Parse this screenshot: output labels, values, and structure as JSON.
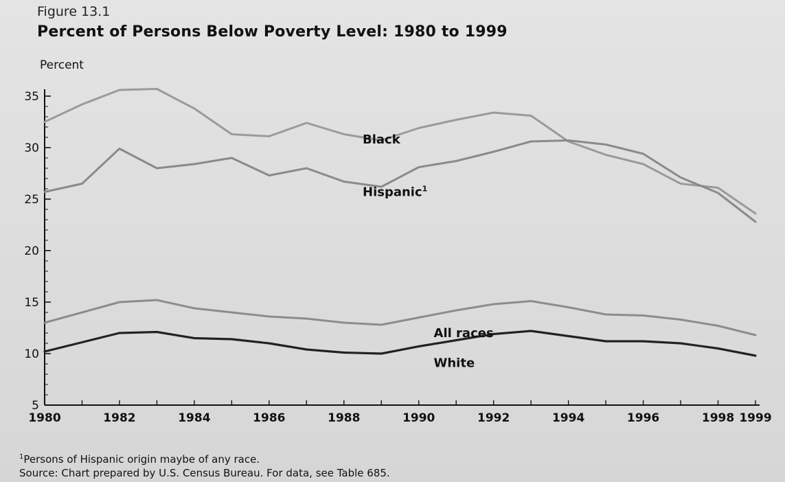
{
  "figure": {
    "label": "Figure 13.1",
    "title": "Percent of Persons Below Poverty Level: 1980 to 1999",
    "footnote_mark": "1",
    "footnote": "Persons of Hispanic origin maybe of any race.",
    "source": "Source: Chart prepared by U.S. Census Bureau. For data, see Table 685."
  },
  "chart_data": {
    "type": "line",
    "title": "Percent of Persons Below Poverty Level: 1980 to 1999",
    "ylabel": "Percent",
    "xlabel": "",
    "xlim": [
      1980,
      1999
    ],
    "ylim": [
      5,
      35
    ],
    "x_ticks": [
      1980,
      1982,
      1984,
      1986,
      1988,
      1990,
      1992,
      1994,
      1996,
      1998,
      1999
    ],
    "y_ticks": [
      5,
      10,
      15,
      20,
      25,
      30,
      35
    ],
    "grid": false,
    "legend": "inline labels",
    "x": [
      1980,
      1981,
      1982,
      1983,
      1984,
      1985,
      1986,
      1987,
      1988,
      1989,
      1990,
      1991,
      1992,
      1993,
      1994,
      1995,
      1996,
      1997,
      1998,
      1999
    ],
    "series": [
      {
        "name": "Black",
        "label_position": [
          1988.5,
          30.4
        ],
        "color": "#9a9a9a",
        "values": [
          32.5,
          34.2,
          35.6,
          35.7,
          33.8,
          31.3,
          31.1,
          32.4,
          31.3,
          30.7,
          31.9,
          32.7,
          33.4,
          33.1,
          30.6,
          29.3,
          28.4,
          26.5,
          26.1,
          23.6
        ]
      },
      {
        "name": "Hispanic",
        "name_mark": "1",
        "label_position": [
          1988.5,
          25.3
        ],
        "color": "#8a8a8a",
        "values": [
          25.7,
          26.5,
          29.9,
          28.0,
          28.4,
          29.0,
          27.3,
          28.0,
          26.7,
          26.2,
          28.1,
          28.7,
          29.6,
          30.6,
          30.7,
          30.3,
          29.4,
          27.1,
          25.6,
          22.8
        ]
      },
      {
        "name": "All races",
        "label_position": [
          1990.4,
          11.6
        ],
        "color": "#8c8c8c",
        "values": [
          13.0,
          14.0,
          15.0,
          15.2,
          14.4,
          14.0,
          13.6,
          13.4,
          13.0,
          12.8,
          13.5,
          14.2,
          14.8,
          15.1,
          14.5,
          13.8,
          13.7,
          13.3,
          12.7,
          11.8
        ]
      },
      {
        "name": "White",
        "label_position": [
          1990.4,
          8.7
        ],
        "color": "#222222",
        "values": [
          10.2,
          11.1,
          12.0,
          12.1,
          11.5,
          11.4,
          11.0,
          10.4,
          10.1,
          10.0,
          10.7,
          11.3,
          11.9,
          12.2,
          11.7,
          11.2,
          11.2,
          11.0,
          10.5,
          9.8
        ]
      }
    ]
  }
}
